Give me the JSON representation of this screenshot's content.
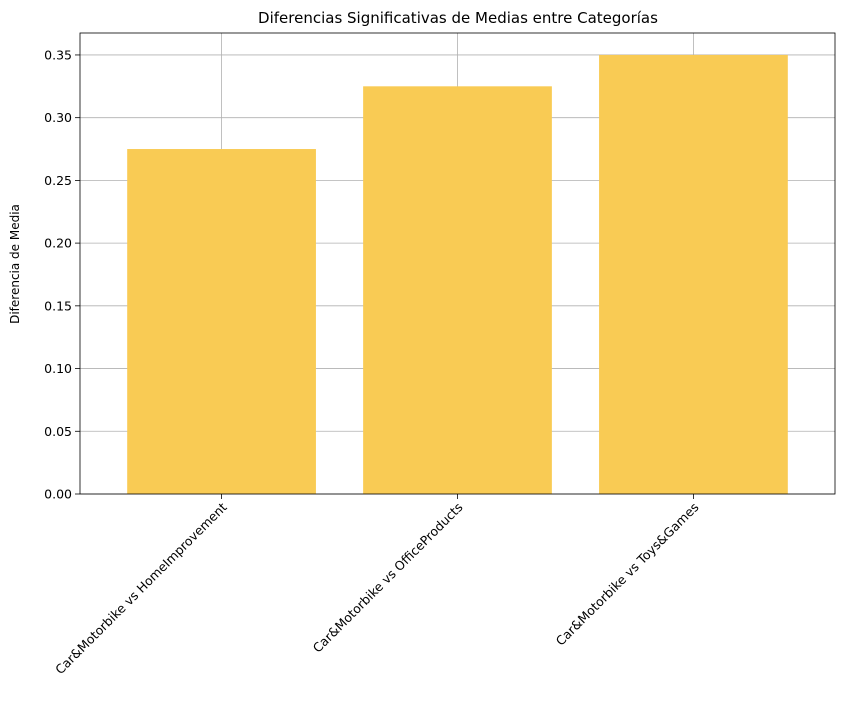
{
  "chart_data": {
    "type": "bar",
    "title": "Diferencias Significativas de Medias entre Categorías",
    "xlabel": "",
    "ylabel": "Diferencia de Media",
    "categories": [
      "Car&Motorbike vs HomeImprovement",
      "Car&Motorbike vs OfficeProducts",
      "Car&Motorbike vs Toys&Games"
    ],
    "values": [
      0.275,
      0.325,
      0.35
    ],
    "ylim": [
      0,
      0.3675
    ],
    "yticks": [
      "0.00",
      "0.05",
      "0.10",
      "0.15",
      "0.20",
      "0.25",
      "0.30",
      "0.35"
    ],
    "grid": true,
    "bar_color": "#f9cb54",
    "grid_color": "#b0b0b0",
    "x_tick_rotation_deg": 45
  }
}
